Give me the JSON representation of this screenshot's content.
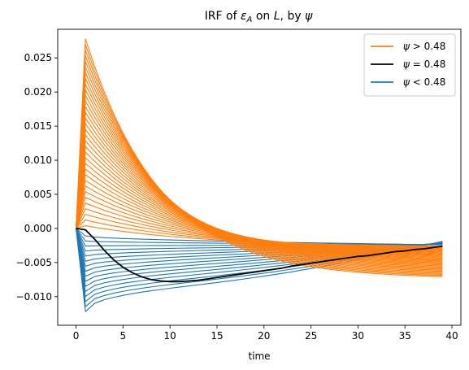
{
  "chart_data": {
    "type": "line",
    "title": "IRF of εA on L, by ψ",
    "title_parts": {
      "pre": "IRF of ",
      "eps": "ε",
      "eps_sub": "A",
      "mid": " on ",
      "L": "L",
      "post": ", by ",
      "psi": "ψ"
    },
    "xlabel": "time",
    "ylabel": "",
    "xlim": [
      -1.95,
      40.95
    ],
    "ylim": [
      -0.0142,
      0.0292
    ],
    "xticks": [
      0,
      5,
      10,
      15,
      20,
      25,
      30,
      35,
      40
    ],
    "xtick_labels": [
      "0",
      "5",
      "10",
      "15",
      "20",
      "25",
      "30",
      "35",
      "40"
    ],
    "yticks": [
      -0.01,
      -0.005,
      0.0,
      0.005,
      0.01,
      0.015,
      0.02,
      0.025
    ],
    "ytick_labels": [
      "−0.010",
      "−0.005",
      "0.000",
      "0.005",
      "0.010",
      "0.015",
      "0.020",
      "0.025"
    ],
    "grid": false,
    "legend_position": "top-right",
    "legend": [
      {
        "label": "ψ > 0.48",
        "color": "#ff7f0e"
      },
      {
        "label": "ψ = 0.48",
        "color": "#000000"
      },
      {
        "label": "ψ < 0.48",
        "color": "#1f77b4"
      }
    ],
    "x_range": [
      0,
      39
    ],
    "series": [
      {
        "name": "ψ = 0.48",
        "color": "#000000",
        "x": [
          0,
          1,
          2,
          3,
          4,
          5,
          6,
          7,
          8,
          9,
          10,
          11,
          12,
          13,
          14,
          15,
          16,
          17,
          18,
          19,
          20,
          21,
          22,
          23,
          24,
          25,
          26,
          27,
          28,
          29,
          30,
          31,
          32,
          33,
          34,
          35,
          36,
          37,
          38,
          39
        ],
        "values": [
          0.0,
          -0.0002,
          -0.0016,
          -0.0032,
          -0.0046,
          -0.0057,
          -0.0065,
          -0.0071,
          -0.0075,
          -0.0077,
          -0.0078,
          -0.0078,
          -0.0077,
          -0.0076,
          -0.0074,
          -0.0072,
          -0.007,
          -0.0068,
          -0.0066,
          -0.0064,
          -0.0062,
          -0.006,
          -0.0058,
          -0.0055,
          -0.0053,
          -0.0051,
          -0.0049,
          -0.0047,
          -0.0045,
          -0.0043,
          -0.0041,
          -0.004,
          -0.0038,
          -0.0036,
          -0.0034,
          -0.0033,
          -0.0031,
          -0.003,
          -0.0028,
          -0.0026
        ]
      }
    ],
    "families": [
      {
        "group": "ψ > 0.48",
        "color": "#ff7f0e",
        "count": 34,
        "peak_at_t1": [
          0.0278,
          0.0004
        ],
        "end_at_t39": [
          -0.0073,
          -0.0026
        ]
      },
      {
        "group": "ψ < 0.48",
        "color": "#1f77b4",
        "count": 16,
        "peak_at_t1": [
          -0.0122,
          -0.0011
        ],
        "end_at_t39": [
          -0.0019,
          -0.0024
        ]
      }
    ]
  }
}
